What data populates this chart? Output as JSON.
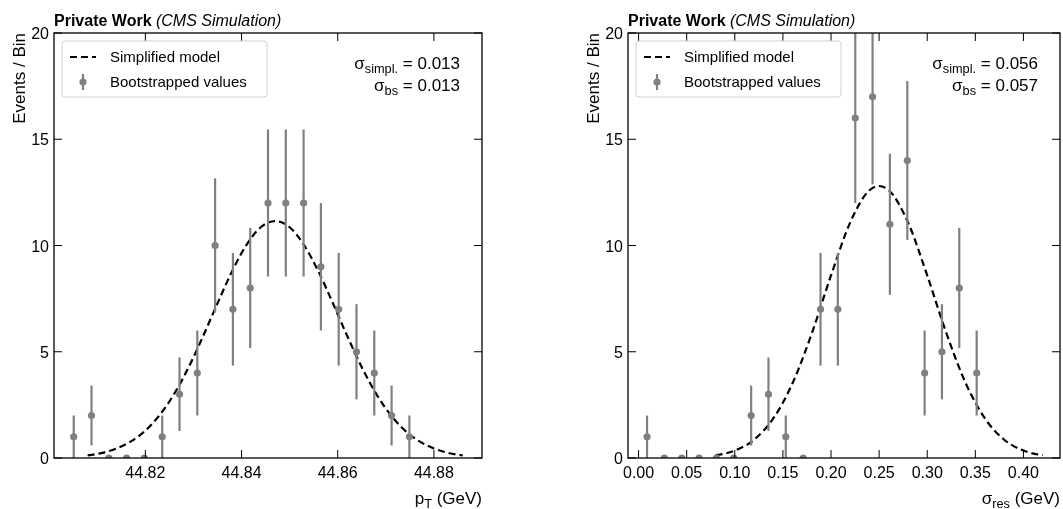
{
  "chart_data": [
    {
      "type": "scatter",
      "title": "Private Work",
      "subtitle": "(CMS Simulation)",
      "xlabel": "p$_{T}$ (GeV)",
      "ylabel": "Events / Bin",
      "annotations": [
        "σ$_{simpl.}$ = 0.013",
        "σ$_{bs}$ = 0.013"
      ],
      "xlim": [
        44.801,
        44.89
      ],
      "xticks": [
        44.82,
        44.84,
        44.86,
        44.88
      ],
      "ylim": [
        0,
        20
      ],
      "yticks": [
        0,
        5,
        10,
        15,
        20
      ],
      "legend": "top left",
      "grid": false,
      "series": [
        {
          "name": "Simplified model",
          "type": "line",
          "color": "#000000",
          "line_style": "dashed",
          "marker": "none",
          "x": [
            44.808,
            44.811,
            44.814,
            44.817,
            44.82,
            44.823,
            44.826,
            44.829,
            44.832,
            44.835,
            44.838,
            44.841,
            44.844,
            44.847,
            44.85,
            44.853,
            44.856,
            44.859,
            44.862,
            44.865,
            44.868,
            44.871,
            44.874,
            44.877,
            44.88,
            44.883,
            44.886
          ],
          "values": [
            0.12,
            0.24,
            0.45,
            0.78,
            1.29,
            2.03,
            3.02,
            4.27,
            5.73,
            7.28,
            8.77,
            10.02,
            10.86,
            11.15,
            10.86,
            10.02,
            8.77,
            7.28,
            5.73,
            4.27,
            3.02,
            2.03,
            1.29,
            0.78,
            0.45,
            0.24,
            0.12
          ]
        },
        {
          "name": "Bootstrapped values",
          "color": "#808080",
          "marker": "circle",
          "x": [
            44.8051,
            44.8088,
            44.8124,
            44.8161,
            44.8198,
            44.8235,
            44.8271,
            44.8308,
            44.8345,
            44.8382,
            44.8418,
            44.8455,
            44.8492,
            44.8529,
            44.8565,
            44.8602,
            44.8639,
            44.8676,
            44.8712,
            44.8749
          ],
          "values": [
            1,
            2,
            0,
            0,
            0,
            1,
            3,
            4,
            10,
            7,
            8,
            12,
            12,
            12,
            9,
            7,
            5,
            4,
            2,
            1
          ],
          "errors": [
            1,
            1.41,
            null,
            null,
            null,
            1,
            1.73,
            2,
            3.16,
            2.65,
            2.83,
            3.46,
            3.46,
            3.46,
            3,
            2.65,
            2.24,
            2,
            1.41,
            1
          ]
        }
      ]
    },
    {
      "type": "scatter",
      "title": "Private Work",
      "subtitle": "(CMS Simulation)",
      "xlabel": "σ$_{res}$ (GeV)",
      "ylabel": "Events / Bin",
      "annotations": [
        "σ$_{simpl.}$ = 0.056",
        "σ$_{bs}$ = 0.057"
      ],
      "xlim": [
        -0.011,
        0.438
      ],
      "xticks": [
        {
          "value": 0,
          "label": "0.00"
        },
        0.05,
        {
          "value": 0.1,
          "label": "0.10"
        },
        0.15,
        {
          "value": 0.2,
          "label": "0.20"
        },
        0.25,
        {
          "value": 0.3,
          "label": "0.30"
        },
        0.35,
        {
          "value": 0.4,
          "label": "0.40"
        }
      ],
      "ylim": [
        0,
        20
      ],
      "yticks": [
        0,
        5,
        10,
        15,
        20
      ],
      "legend": "top left",
      "grid": false,
      "series": [
        {
          "name": "Simplified model",
          "type": "line",
          "color": "#000000",
          "line_style": "dashed",
          "marker": "none",
          "x": [
            0.08,
            0.1,
            0.12,
            0.14,
            0.16,
            0.18,
            0.2,
            0.22,
            0.24,
            0.25,
            0.26,
            0.28,
            0.3,
            0.32,
            0.34,
            0.36,
            0.38,
            0.4,
            0.42
          ],
          "values": [
            0.13,
            0.35,
            0.86,
            1.86,
            3.52,
            5.86,
            8.59,
            11.09,
            12.6,
            12.8,
            12.6,
            11.09,
            8.59,
            5.86,
            3.52,
            1.86,
            0.86,
            0.35,
            0.13
          ]
        },
        {
          "name": "Bootstrapped values",
          "color": "#808080",
          "marker": "circle",
          "x": [
            0.0088,
            0.0268,
            0.0449,
            0.0629,
            0.0809,
            0.099,
            0.117,
            0.135,
            0.153,
            0.1711,
            0.1891,
            0.2071,
            0.2252,
            0.2432,
            0.2612,
            0.2793,
            0.2973,
            0.3153,
            0.3333,
            0.3514
          ],
          "values": [
            1,
            0,
            0,
            0,
            0,
            0,
            2,
            3,
            1,
            0,
            7,
            7,
            16,
            17,
            11,
            14,
            4,
            5,
            8,
            4
          ],
          "errors": [
            1,
            null,
            null,
            null,
            null,
            null,
            1.41,
            1.73,
            1,
            null,
            2.65,
            2.65,
            4,
            [
              12.88,
              20
            ],
            3.32,
            3.74,
            2,
            2.24,
            2.83,
            2
          ]
        }
      ]
    }
  ]
}
